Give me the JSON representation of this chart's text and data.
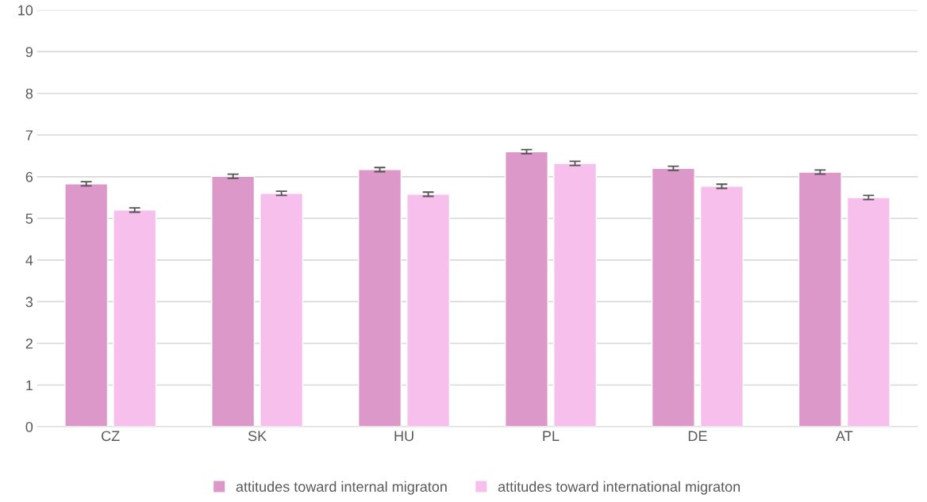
{
  "chart_data": {
    "type": "bar",
    "categories": [
      "CZ",
      "SK",
      "HU",
      "PL",
      "DE",
      "AT"
    ],
    "series": [
      {
        "name": "attitudes toward internal migraton",
        "color": "#dc98c8",
        "values": [
          5.83,
          6.01,
          6.17,
          6.6,
          6.2,
          6.11
        ],
        "errors": [
          0.05,
          0.05,
          0.05,
          0.05,
          0.05,
          0.05
        ]
      },
      {
        "name": "attitudes toward international migraton",
        "color": "#f7bfeb",
        "values": [
          5.2,
          5.6,
          5.58,
          6.32,
          5.77,
          5.5
        ],
        "errors": [
          0.05,
          0.05,
          0.05,
          0.05,
          0.05,
          0.05
        ]
      }
    ],
    "ylim": [
      0,
      10
    ],
    "yticks": [
      0,
      1,
      2,
      3,
      4,
      5,
      6,
      7,
      8,
      9,
      10
    ],
    "grid": "y",
    "legend": "bottom"
  }
}
